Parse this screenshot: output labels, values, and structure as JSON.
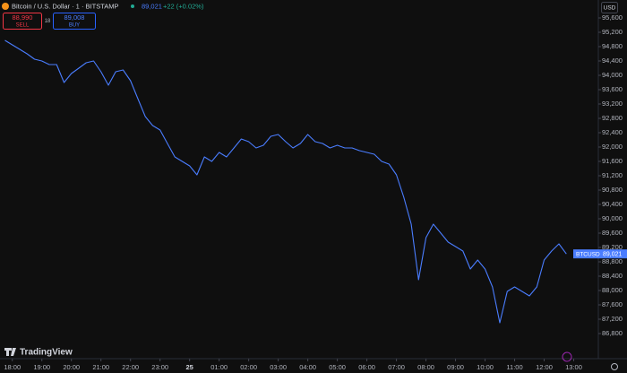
{
  "header": {
    "price": "89,021",
    "change": "+22 (+0.02%)",
    "sell_price": "88,990",
    "sell": "SELL",
    "spread": "18",
    "buy_price": "89,008",
    "buy": "BUY",
    "currency": "USD",
    "logo": "TradingView"
  },
  "chart_data": {
    "type": "line",
    "title": "Bitcoin / U.S. Dollar · 1 · BITSTAMP",
    "x": [
      "17:45",
      "18:00",
      "18:15",
      "18:30",
      "18:45",
      "19:00",
      "19:15",
      "19:30",
      "19:45",
      "20:00",
      "20:15",
      "20:30",
      "20:45",
      "21:00",
      "21:15",
      "21:30",
      "21:45",
      "22:00",
      "22:15",
      "22:30",
      "22:45",
      "23:00",
      "23:15",
      "23:30",
      "23:45",
      "00:00",
      "00:15",
      "00:30",
      "00:45",
      "01:00",
      "01:15",
      "01:30",
      "01:45",
      "02:00",
      "02:15",
      "02:30",
      "02:45",
      "03:00",
      "03:15",
      "03:30",
      "03:45",
      "04:00",
      "04:15",
      "04:30",
      "04:45",
      "05:00",
      "05:15",
      "05:30",
      "05:45",
      "06:00",
      "06:15",
      "06:30",
      "06:45",
      "07:00",
      "07:15",
      "07:30",
      "07:45",
      "08:00",
      "08:15",
      "08:30",
      "08:45",
      "09:00",
      "09:15",
      "09:30",
      "09:45",
      "10:00",
      "10:15",
      "10:30",
      "10:45",
      "11:00",
      "11:15",
      "11:30",
      "11:45",
      "12:00",
      "12:15",
      "12:30",
      "12:45"
    ],
    "series": [
      {
        "name": "BTCUSD",
        "color": "#4a7dff",
        "values": [
          94975,
          94850,
          94725,
          94600,
          94450,
          94400,
          94300,
          94300,
          93800,
          94050,
          94200,
          94350,
          94400,
          94100,
          93725,
          94100,
          94150,
          93850,
          93350,
          92850,
          92600,
          92475,
          92100,
          91725,
          91600,
          91475,
          91225,
          91725,
          91600,
          91850,
          91725,
          91975,
          92225,
          92150,
          91975,
          92050,
          92300,
          92350,
          92150,
          91975,
          92100,
          92350,
          92150,
          92100,
          91975,
          92050,
          91975,
          91975,
          91900,
          91850,
          91800,
          91600,
          91525,
          91225,
          90600,
          89850,
          88300,
          89475,
          89850,
          89600,
          89350,
          89225,
          89100,
          88600,
          88850,
          88600,
          88100,
          87100,
          87975,
          88100,
          87975,
          87850,
          88100,
          88850,
          89100,
          89300,
          89021
        ]
      }
    ],
    "price_tag": {
      "value": 89021,
      "label": "89,021"
    },
    "xlim": [
      "17:35",
      "13:50"
    ],
    "xticks": [
      "18:00",
      "19:00",
      "20:00",
      "21:00",
      "22:00",
      "23:00",
      {
        "value": "00:00",
        "label": "25"
      },
      "01:00",
      "02:00",
      "03:00",
      "04:00",
      "05:00",
      "06:00",
      "07:00",
      "08:00",
      "09:00",
      "10:00",
      "11:00",
      "12:00",
      "13:00"
    ],
    "ylim": [
      86100,
      96100
    ],
    "yticks": [
      {
        "value": 86800,
        "label": "86,800"
      },
      {
        "value": 87200,
        "label": "87,200"
      },
      {
        "value": 87600,
        "label": "87,600"
      },
      {
        "value": 88000,
        "label": "88,000"
      },
      {
        "value": 88400,
        "label": "88,400"
      },
      {
        "value": 88800,
        "label": "88,800"
      },
      {
        "value": 89200,
        "label": "89,200"
      },
      {
        "value": 89600,
        "label": "89,600"
      },
      {
        "value": 90000,
        "label": "90,000"
      },
      {
        "value": 90400,
        "label": "90,400"
      },
      {
        "value": 90800,
        "label": "90,800"
      },
      {
        "value": 91200,
        "label": "91,200"
      },
      {
        "value": 91600,
        "label": "91,600"
      },
      {
        "value": 92000,
        "label": "92,000"
      },
      {
        "value": 92400,
        "label": "92,400"
      },
      {
        "value": 92800,
        "label": "92,800"
      },
      {
        "value": 93200,
        "label": "93,200"
      },
      {
        "value": 93600,
        "label": "93,600"
      },
      {
        "value": 94000,
        "label": "94,000"
      },
      {
        "value": 94400,
        "label": "94,400"
      },
      {
        "value": 94800,
        "label": "94,800"
      },
      {
        "value": 95200,
        "label": "95,200"
      },
      {
        "value": 95600,
        "label": "95,600"
      }
    ],
    "grid": false
  }
}
